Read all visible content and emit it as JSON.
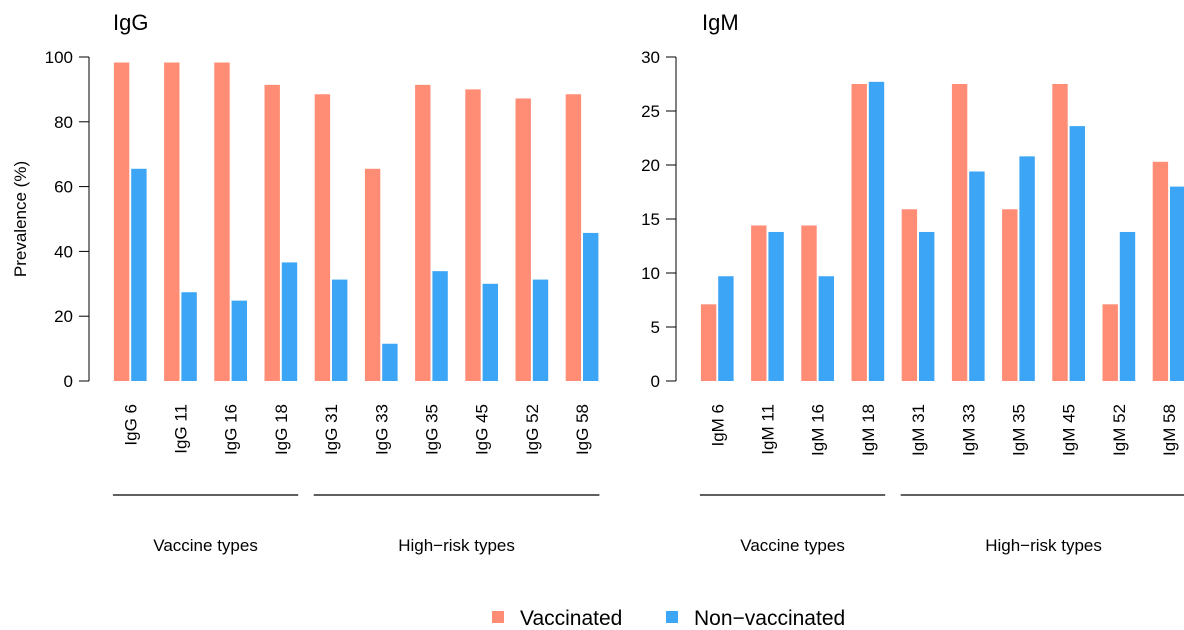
{
  "colors": {
    "vaccinated": "#FF8C74",
    "non_vaccinated": "#3DA5F5"
  },
  "legend": {
    "placement": "bottom-center",
    "items": [
      "Vaccinated",
      "Non−vaccinated"
    ]
  },
  "chart_data": [
    {
      "type": "bar",
      "title": "IgG",
      "ylabel": "Prevalence (%)",
      "ylim": [
        0,
        100
      ],
      "yticks": [
        0,
        20,
        40,
        60,
        80,
        100
      ],
      "categories": [
        "IgG 6",
        "IgG 11",
        "IgG 16",
        "IgG 18",
        "IgG 31",
        "IgG 33",
        "IgG 35",
        "IgG 45",
        "IgG 52",
        "IgG 58"
      ],
      "groups": [
        {
          "label": "Vaccine types",
          "from": 0,
          "to": 3
        },
        {
          "label": "High−risk types",
          "from": 4,
          "to": 9
        }
      ],
      "series": [
        {
          "name": "Vaccinated",
          "values": [
            98.3,
            98.3,
            98.3,
            91.4,
            88.5,
            65.5,
            91.4,
            90.0,
            87.2,
            88.5
          ]
        },
        {
          "name": "Non−vaccinated",
          "values": [
            65.5,
            27.4,
            24.8,
            36.6,
            31.3,
            11.5,
            33.9,
            30.0,
            31.3,
            45.7
          ]
        }
      ],
      "grid": false
    },
    {
      "type": "bar",
      "title": "IgM",
      "ylabel": "",
      "ylim": [
        0,
        30
      ],
      "yticks": [
        0,
        5,
        10,
        15,
        20,
        25,
        30
      ],
      "categories": [
        "IgM 6",
        "IgM 11",
        "IgM 16",
        "IgM 18",
        "IgM 31",
        "IgM 33",
        "IgM 35",
        "IgM 45",
        "IgM 52",
        "IgM 58"
      ],
      "groups": [
        {
          "label": "Vaccine types",
          "from": 0,
          "to": 3
        },
        {
          "label": "High−risk types",
          "from": 4,
          "to": 9
        }
      ],
      "series": [
        {
          "name": "Vaccinated",
          "values": [
            7.1,
            14.4,
            14.4,
            27.5,
            15.9,
            27.5,
            15.9,
            27.5,
            7.1,
            20.3
          ]
        },
        {
          "name": "Non−vaccinated",
          "values": [
            9.7,
            13.8,
            9.7,
            27.7,
            13.8,
            19.4,
            20.8,
            23.6,
            13.8,
            18.0
          ]
        }
      ],
      "grid": false
    }
  ]
}
